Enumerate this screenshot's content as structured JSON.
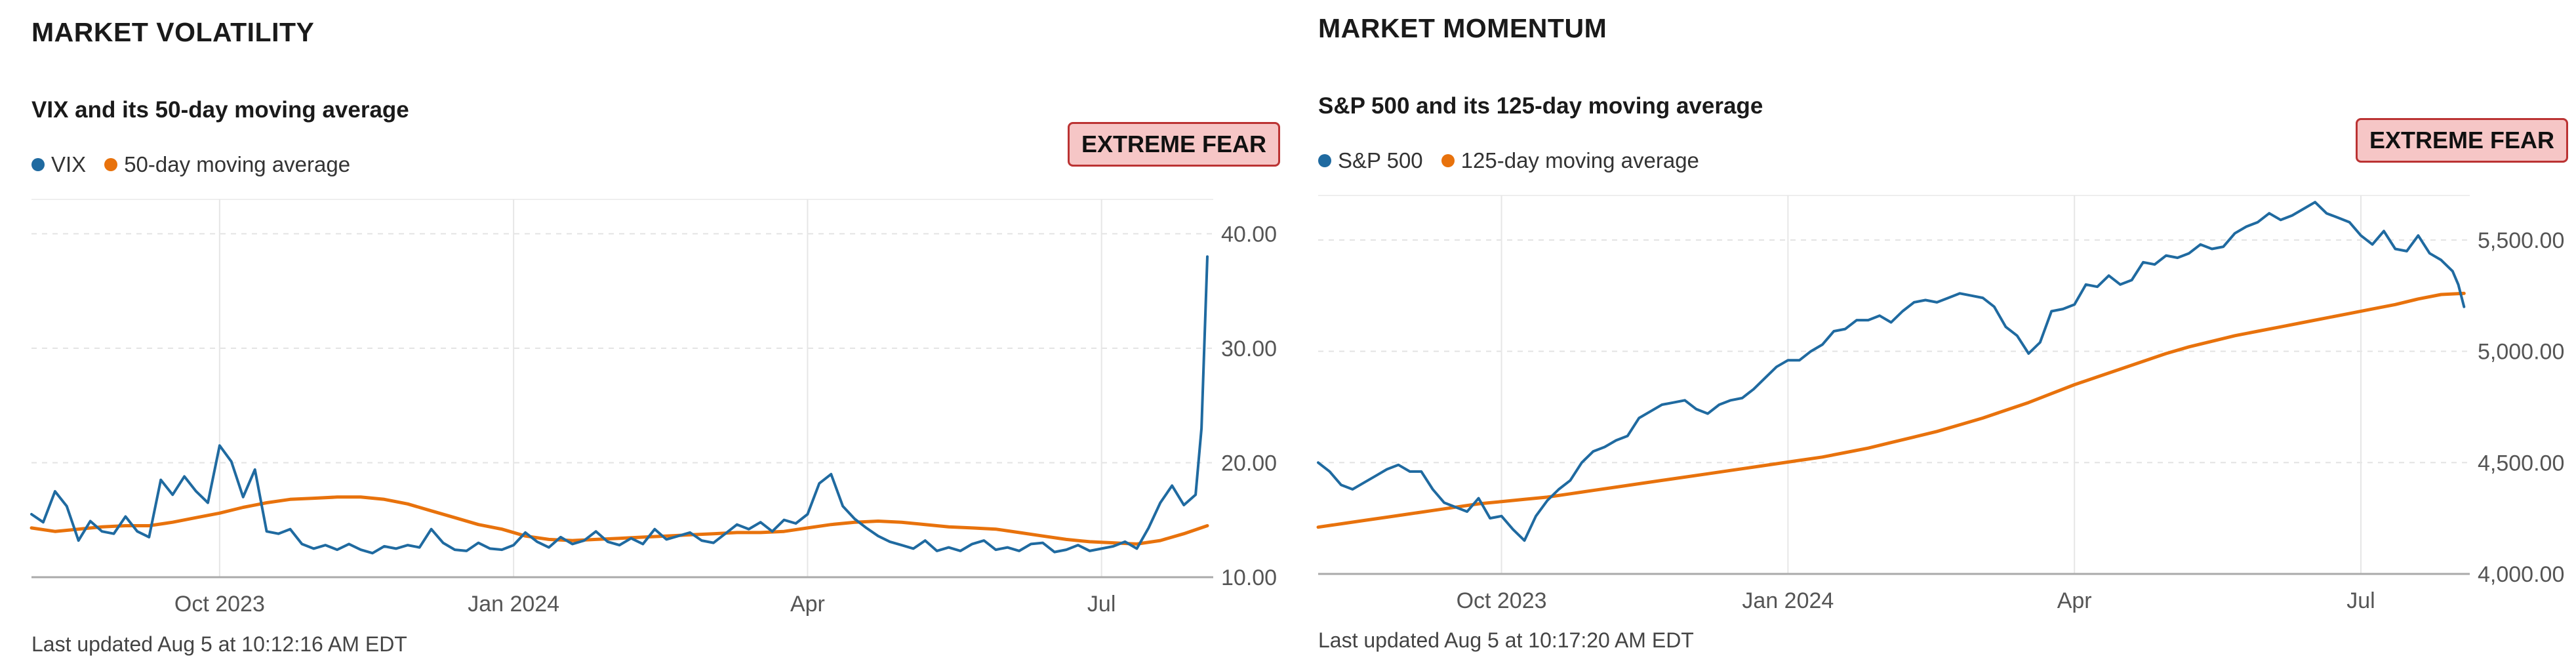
{
  "volatility": {
    "section_title": "MARKET VOLATILITY",
    "chart_title": "VIX and its 50-day moving average",
    "badge": "EXTREME FEAR",
    "updated": "Last updated Aug 5 at 10:12:16 AM EDT",
    "colors": {
      "series": "#1f6aa0",
      "average": "#e8720c",
      "badge_bg": "#f6c6c6",
      "badge_border": "#b33333"
    },
    "chart_data": {
      "type": "line",
      "title": "VIX and its 50-day moving average",
      "legend": [
        "VIX",
        "50-day moving average"
      ],
      "xlabel": "",
      "ylabel": "",
      "x_ticks": [
        "Oct 2023",
        "Jan 2024",
        "Apr",
        "Jul"
      ],
      "x_tick_positions": [
        2023.75,
        2024.0,
        2024.25,
        2024.5
      ],
      "xlim": [
        2023.59,
        2024.595
      ],
      "y_ticks": [
        "10.00",
        "20.00",
        "30.00",
        "40.00"
      ],
      "y_tick_values": [
        10,
        20,
        30,
        40
      ],
      "ylim": [
        10,
        43
      ],
      "series": [
        {
          "name": "VIX",
          "x": [
            2023.59,
            2023.6,
            2023.61,
            2023.62,
            2023.63,
            2023.64,
            2023.65,
            2023.66,
            2023.67,
            2023.68,
            2023.69,
            2023.7,
            2023.71,
            2023.72,
            2023.73,
            2023.74,
            2023.75,
            2023.76,
            2023.77,
            2023.78,
            2023.79,
            2023.8,
            2023.81,
            2023.82,
            2023.83,
            2023.84,
            2023.85,
            2023.86,
            2023.87,
            2023.88,
            2023.89,
            2023.9,
            2023.91,
            2023.92,
            2023.93,
            2023.94,
            2023.95,
            2023.96,
            2023.97,
            2023.98,
            2023.99,
            2024.0,
            2024.01,
            2024.02,
            2024.03,
            2024.04,
            2024.05,
            2024.06,
            2024.07,
            2024.08,
            2024.09,
            2024.1,
            2024.11,
            2024.12,
            2024.13,
            2024.14,
            2024.15,
            2024.16,
            2024.17,
            2024.18,
            2024.19,
            2024.2,
            2024.21,
            2024.22,
            2024.23,
            2024.24,
            2024.25,
            2024.26,
            2024.27,
            2024.28,
            2024.29,
            2024.3,
            2024.31,
            2024.32,
            2024.33,
            2024.34,
            2024.35,
            2024.36,
            2024.37,
            2024.38,
            2024.39,
            2024.4,
            2024.41,
            2024.42,
            2024.43,
            2024.44,
            2024.45,
            2024.46,
            2024.47,
            2024.48,
            2024.49,
            2024.5,
            2024.51,
            2024.52,
            2024.53,
            2024.54,
            2024.55,
            2024.56,
            2024.57,
            2024.58,
            2024.585,
            2024.59
          ],
          "y": [
            15.5,
            14.8,
            17.5,
            16.2,
            13.2,
            14.9,
            14.0,
            13.8,
            15.3,
            14.0,
            13.5,
            18.5,
            17.2,
            18.8,
            17.5,
            16.5,
            21.5,
            20.1,
            17.0,
            19.4,
            14.0,
            13.8,
            14.2,
            12.9,
            12.5,
            12.8,
            12.4,
            12.9,
            12.4,
            12.1,
            12.7,
            12.5,
            12.8,
            12.6,
            14.2,
            13.0,
            12.4,
            12.3,
            13.0,
            12.5,
            12.4,
            12.8,
            13.9,
            13.1,
            12.6,
            13.5,
            12.9,
            13.2,
            14.0,
            13.1,
            12.8,
            13.4,
            12.9,
            14.2,
            13.3,
            13.6,
            13.9,
            13.2,
            13.0,
            13.8,
            14.6,
            14.2,
            14.8,
            14.0,
            15.0,
            14.7,
            15.5,
            18.2,
            19.0,
            16.2,
            15.1,
            14.3,
            13.6,
            13.1,
            12.8,
            12.5,
            13.2,
            12.3,
            12.6,
            12.3,
            12.9,
            13.2,
            12.4,
            12.6,
            12.3,
            12.9,
            13.0,
            12.2,
            12.4,
            12.8,
            12.3,
            12.5,
            12.7,
            13.1,
            12.5,
            14.3,
            16.5,
            18.0,
            16.3,
            17.2,
            23.0,
            38.0
          ]
        },
        {
          "name": "50-day moving average",
          "x": [
            2023.59,
            2023.61,
            2023.63,
            2023.65,
            2023.67,
            2023.69,
            2023.71,
            2023.73,
            2023.75,
            2023.77,
            2023.79,
            2023.81,
            2023.83,
            2023.85,
            2023.87,
            2023.89,
            2023.91,
            2023.93,
            2023.95,
            2023.97,
            2023.99,
            2024.01,
            2024.03,
            2024.05,
            2024.07,
            2024.09,
            2024.11,
            2024.13,
            2024.15,
            2024.17,
            2024.19,
            2024.21,
            2024.23,
            2024.25,
            2024.27,
            2024.29,
            2024.31,
            2024.33,
            2024.35,
            2024.37,
            2024.39,
            2024.41,
            2024.43,
            2024.45,
            2024.47,
            2024.49,
            2024.51,
            2024.53,
            2024.55,
            2024.57,
            2024.59
          ],
          "y": [
            14.3,
            14.0,
            14.2,
            14.4,
            14.5,
            14.5,
            14.8,
            15.2,
            15.6,
            16.1,
            16.5,
            16.8,
            16.9,
            17.0,
            17.0,
            16.8,
            16.4,
            15.8,
            15.2,
            14.6,
            14.2,
            13.6,
            13.3,
            13.2,
            13.3,
            13.4,
            13.5,
            13.6,
            13.7,
            13.8,
            13.9,
            13.9,
            14.0,
            14.3,
            14.6,
            14.8,
            14.9,
            14.8,
            14.6,
            14.4,
            14.3,
            14.2,
            13.9,
            13.6,
            13.3,
            13.1,
            13.0,
            12.9,
            13.2,
            13.8,
            14.5
          ]
        }
      ]
    }
  },
  "momentum": {
    "section_title": "MARKET MOMENTUM",
    "chart_title": "S&P 500 and its 125-day moving average",
    "badge": "EXTREME FEAR",
    "updated": "Last updated Aug 5 at 10:17:20 AM EDT",
    "colors": {
      "series": "#1f6aa0",
      "average": "#e8720c",
      "badge_bg": "#f6c6c6",
      "badge_border": "#b33333"
    },
    "chart_data": {
      "type": "line",
      "title": "S&P 500 and its 125-day moving average",
      "legend": [
        "S&P 500",
        "125-day moving average"
      ],
      "xlabel": "",
      "ylabel": "",
      "x_ticks": [
        "Oct 2023",
        "Jan 2024",
        "Apr",
        "Jul"
      ],
      "x_tick_positions": [
        2023.75,
        2024.0,
        2024.25,
        2024.5
      ],
      "xlim": [
        2023.59,
        2024.595
      ],
      "y_ticks": [
        "4,000.00",
        "4,500.00",
        "5,000.00",
        "5,500.00"
      ],
      "y_tick_values": [
        4000,
        4500,
        5000,
        5500
      ],
      "ylim": [
        4000,
        5700
      ],
      "series": [
        {
          "name": "S&P 500",
          "x": [
            2023.59,
            2023.6,
            2023.61,
            2023.62,
            2023.63,
            2023.64,
            2023.65,
            2023.66,
            2023.67,
            2023.68,
            2023.69,
            2023.7,
            2023.71,
            2023.72,
            2023.73,
            2023.74,
            2023.75,
            2023.76,
            2023.77,
            2023.78,
            2023.79,
            2023.8,
            2023.81,
            2023.82,
            2023.83,
            2023.84,
            2023.85,
            2023.86,
            2023.87,
            2023.88,
            2023.89,
            2023.9,
            2023.91,
            2023.92,
            2023.93,
            2023.94,
            2023.95,
            2023.96,
            2023.97,
            2023.98,
            2023.99,
            2024.0,
            2024.01,
            2024.02,
            2024.03,
            2024.04,
            2024.05,
            2024.06,
            2024.07,
            2024.08,
            2024.09,
            2024.1,
            2024.11,
            2024.12,
            2024.13,
            2024.14,
            2024.15,
            2024.16,
            2024.17,
            2024.18,
            2024.19,
            2024.2,
            2024.21,
            2024.22,
            2024.23,
            2024.24,
            2024.25,
            2024.26,
            2024.27,
            2024.28,
            2024.29,
            2024.3,
            2024.31,
            2024.32,
            2024.33,
            2024.34,
            2024.35,
            2024.36,
            2024.37,
            2024.38,
            2024.39,
            2024.4,
            2024.41,
            2024.42,
            2024.43,
            2024.44,
            2024.45,
            2024.46,
            2024.47,
            2024.48,
            2024.49,
            2024.5,
            2024.51,
            2024.52,
            2024.53,
            2024.54,
            2024.55,
            2024.56,
            2024.57,
            2024.58,
            2024.585,
            2024.59
          ],
          "y": [
            4500,
            4460,
            4400,
            4380,
            4410,
            4440,
            4470,
            4490,
            4460,
            4460,
            4380,
            4320,
            4300,
            4280,
            4340,
            4250,
            4260,
            4200,
            4150,
            4260,
            4330,
            4380,
            4420,
            4500,
            4550,
            4570,
            4600,
            4620,
            4700,
            4730,
            4760,
            4770,
            4780,
            4740,
            4720,
            4760,
            4780,
            4790,
            4830,
            4880,
            4930,
            4960,
            4960,
            5000,
            5030,
            5090,
            5100,
            5140,
            5140,
            5160,
            5130,
            5180,
            5220,
            5230,
            5220,
            5240,
            5260,
            5250,
            5240,
            5200,
            5110,
            5070,
            4990,
            5040,
            5180,
            5190,
            5210,
            5300,
            5290,
            5340,
            5300,
            5320,
            5400,
            5390,
            5430,
            5420,
            5440,
            5480,
            5460,
            5470,
            5530,
            5560,
            5580,
            5620,
            5590,
            5610,
            5640,
            5670,
            5620,
            5600,
            5580,
            5520,
            5480,
            5540,
            5460,
            5450,
            5520,
            5440,
            5410,
            5360,
            5300,
            5200
          ]
        },
        {
          "name": "125-day moving average",
          "x": [
            2023.59,
            2023.61,
            2023.63,
            2023.65,
            2023.67,
            2023.69,
            2023.71,
            2023.73,
            2023.75,
            2023.77,
            2023.79,
            2023.81,
            2023.83,
            2023.85,
            2023.87,
            2023.89,
            2023.91,
            2023.93,
            2023.95,
            2023.97,
            2023.99,
            2024.01,
            2024.03,
            2024.05,
            2024.07,
            2024.09,
            2024.11,
            2024.13,
            2024.15,
            2024.17,
            2024.19,
            2024.21,
            2024.23,
            2024.25,
            2024.27,
            2024.29,
            2024.31,
            2024.33,
            2024.35,
            2024.37,
            2024.39,
            2024.41,
            2024.43,
            2024.45,
            2024.47,
            2024.49,
            2024.51,
            2024.53,
            2024.55,
            2024.57,
            2024.59
          ],
          "y": [
            4210,
            4225,
            4240,
            4255,
            4270,
            4285,
            4300,
            4315,
            4325,
            4335,
            4345,
            4360,
            4375,
            4390,
            4405,
            4420,
            4435,
            4450,
            4465,
            4480,
            4495,
            4510,
            4525,
            4545,
            4565,
            4590,
            4615,
            4640,
            4670,
            4700,
            4735,
            4770,
            4810,
            4850,
            4885,
            4920,
            4955,
            4990,
            5020,
            5045,
            5070,
            5090,
            5110,
            5130,
            5150,
            5170,
            5190,
            5210,
            5235,
            5255,
            5260
          ]
        }
      ]
    }
  }
}
